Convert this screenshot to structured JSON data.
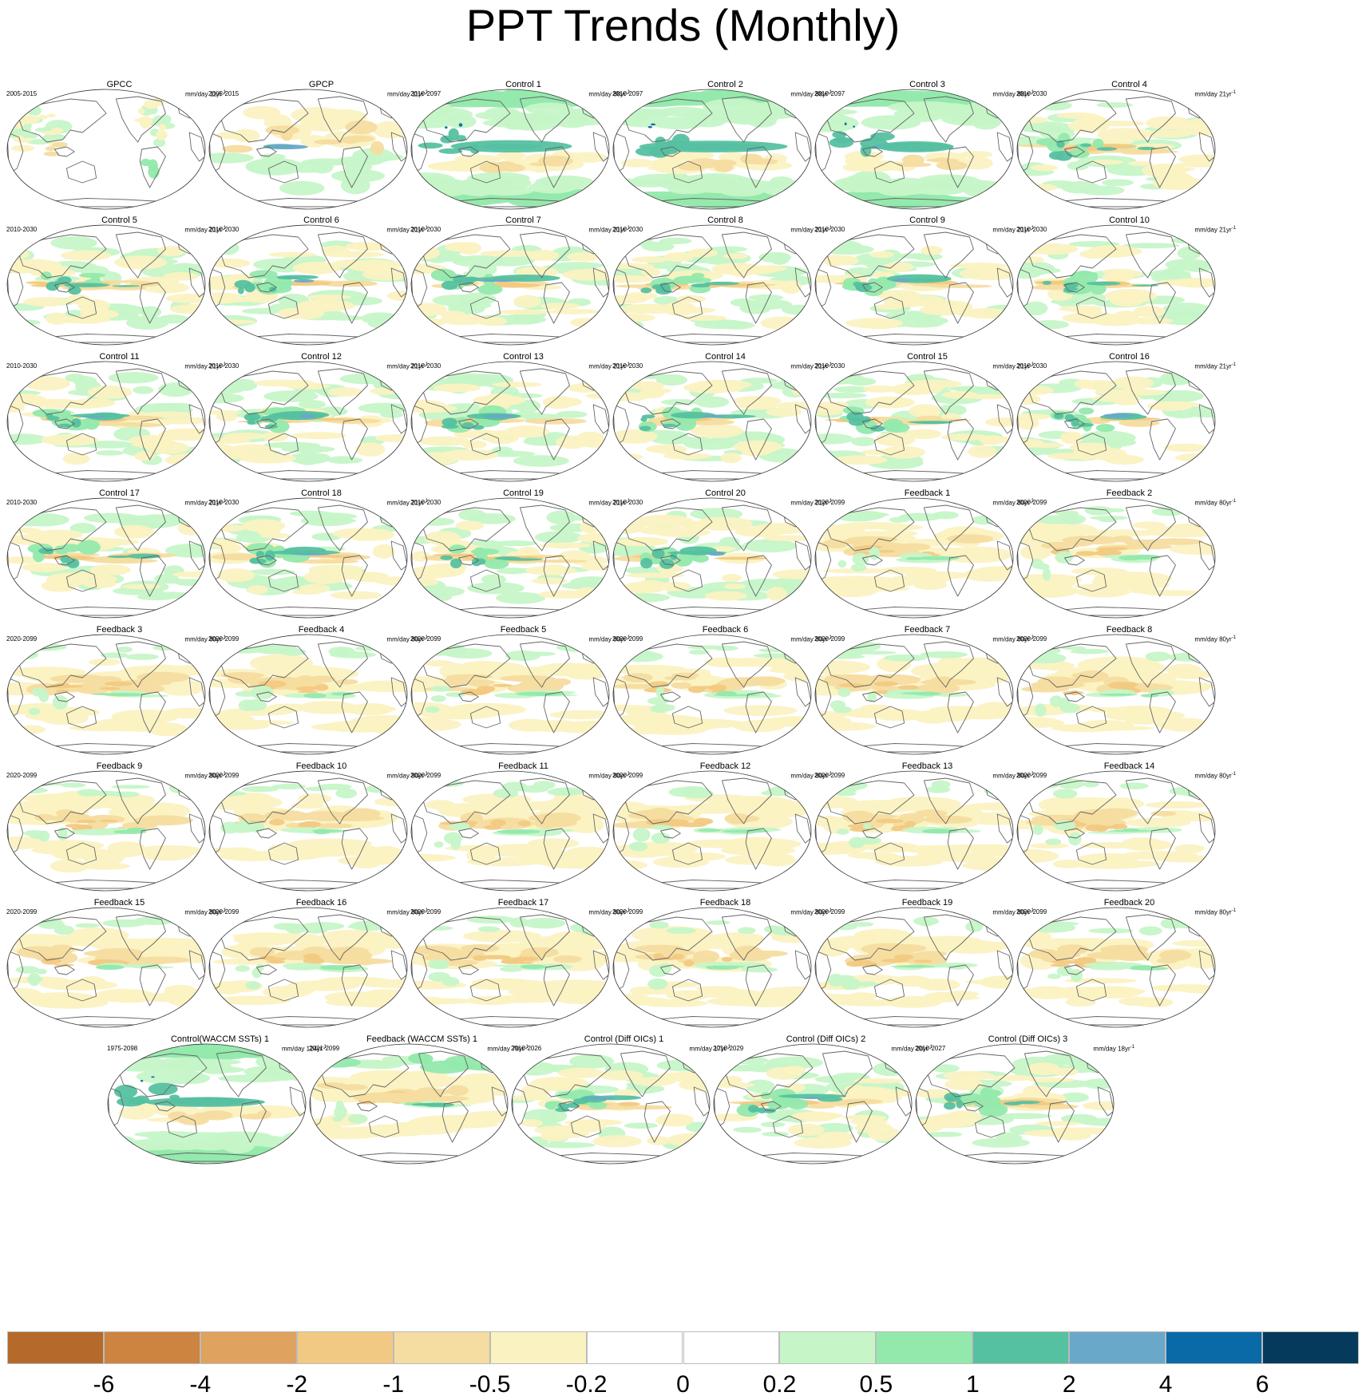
{
  "title": "PPT Trends (Monthly)",
  "chart_data": {
    "type": "heatmap",
    "title": "PPT Trends (Monthly)",
    "projection": "global ellipse (Robinson-like), Pacific-centered",
    "colorbar": {
      "levels": [
        "-6",
        "-4",
        "-2",
        "-1",
        "-0.5",
        "-0.2",
        "0",
        "0.2",
        "0.5",
        "1",
        "2",
        "4",
        "6"
      ],
      "colors": [
        "#b5692a",
        "#cd8440",
        "#dfa25f",
        "#f2c982",
        "#f5dca0",
        "#fbf2c2",
        "#ffffff",
        "#ffffff",
        "#c6f6c8",
        "#93e9ac",
        "#55c1a0",
        "#6aa8c9",
        "#0a6aa8",
        "#053a5c"
      ]
    },
    "panels": [
      {
        "title": "GPCC",
        "period": "2005-2015",
        "unit": "mm/day 11yr",
        "pattern": "obs"
      },
      {
        "title": "GPCP",
        "period": "2005-2015",
        "unit": "mm/day 11yr",
        "pattern": "gpcp"
      },
      {
        "title": "Control 1",
        "period": "2010-2097",
        "unit": "mm/day 88yr",
        "pattern": "longwet"
      },
      {
        "title": "Control 2",
        "period": "2010-2097",
        "unit": "mm/day 88yr",
        "pattern": "longwet"
      },
      {
        "title": "Control 3",
        "period": "2010-2097",
        "unit": "mm/day 88yr",
        "pattern": "longwet"
      },
      {
        "title": "Control 4",
        "period": "2010-2030",
        "unit": "mm/day 21yr",
        "pattern": "mixdry"
      },
      {
        "title": "Control 5",
        "period": "2010-2030",
        "unit": "mm/day 21yr",
        "pattern": "mixdry"
      },
      {
        "title": "Control 6",
        "period": "2010-2030",
        "unit": "mm/day 21yr",
        "pattern": "mixwet"
      },
      {
        "title": "Control 7",
        "period": "2010-2030",
        "unit": "mm/day 21yr",
        "pattern": "mixwet"
      },
      {
        "title": "Control 8",
        "period": "2010-2030",
        "unit": "mm/day 21yr",
        "pattern": "mixdry"
      },
      {
        "title": "Control 9",
        "period": "2010-2030",
        "unit": "mm/day 21yr",
        "pattern": "mixwet"
      },
      {
        "title": "Control 10",
        "period": "2010-2030",
        "unit": "mm/day 21yr",
        "pattern": "mixdry"
      },
      {
        "title": "Control 11",
        "period": "2010-2030",
        "unit": "mm/day 21yr",
        "pattern": "mixwet"
      },
      {
        "title": "Control 12",
        "period": "2010-2030",
        "unit": "mm/day 21yr",
        "pattern": "mixwet"
      },
      {
        "title": "Control 13",
        "period": "2010-2030",
        "unit": "mm/day 21yr",
        "pattern": "mixwet"
      },
      {
        "title": "Control 14",
        "period": "2010-2030",
        "unit": "mm/day 21yr",
        "pattern": "mixwet"
      },
      {
        "title": "Control 15",
        "period": "2010-2030",
        "unit": "mm/day 21yr",
        "pattern": "mixdry"
      },
      {
        "title": "Control 16",
        "period": "2010-2030",
        "unit": "mm/day 21yr",
        "pattern": "mixwet"
      },
      {
        "title": "Control 17",
        "period": "2010-2030",
        "unit": "mm/day 21yr",
        "pattern": "mixdry"
      },
      {
        "title": "Control 18",
        "period": "2010-2030",
        "unit": "mm/day 21yr",
        "pattern": "mixwet"
      },
      {
        "title": "Control 19",
        "period": "2010-2030",
        "unit": "mm/day 21yr",
        "pattern": "mixdry"
      },
      {
        "title": "Control 20",
        "period": "2010-2030",
        "unit": "mm/day 21yr",
        "pattern": "mixwet"
      },
      {
        "title": "Feedback 1",
        "period": "2020-2099",
        "unit": "mm/day 80yr",
        "pattern": "feedback"
      },
      {
        "title": "Feedback 2",
        "period": "2020-2099",
        "unit": "mm/day 80yr",
        "pattern": "feedback"
      },
      {
        "title": "Feedback 3",
        "period": "2020-2099",
        "unit": "mm/day 80yr",
        "pattern": "feedback"
      },
      {
        "title": "Feedback 4",
        "period": "2020-2099",
        "unit": "mm/day 80yr",
        "pattern": "feedback"
      },
      {
        "title": "Feedback 5",
        "period": "2020-2099",
        "unit": "mm/day 80yr",
        "pattern": "feedback"
      },
      {
        "title": "Feedback 6",
        "period": "2020-2099",
        "unit": "mm/day 80yr",
        "pattern": "feedback"
      },
      {
        "title": "Feedback 7",
        "period": "2020-2099",
        "unit": "mm/day 80yr",
        "pattern": "feedback"
      },
      {
        "title": "Feedback 8",
        "period": "2020-2099",
        "unit": "mm/day 80yr",
        "pattern": "feedback"
      },
      {
        "title": "Feedback 9",
        "period": "2020-2099",
        "unit": "mm/day 80yr",
        "pattern": "feedback"
      },
      {
        "title": "Feedback 10",
        "period": "2020-2099",
        "unit": "mm/day 80yr",
        "pattern": "feedback"
      },
      {
        "title": "Feedback 11",
        "period": "2020-2099",
        "unit": "mm/day 80yr",
        "pattern": "feedback"
      },
      {
        "title": "Feedback 12",
        "period": "2020-2099",
        "unit": "mm/day 80yr",
        "pattern": "feedback"
      },
      {
        "title": "Feedback 13",
        "period": "2020-2099",
        "unit": "mm/day 80yr",
        "pattern": "feedback"
      },
      {
        "title": "Feedback 14",
        "period": "2020-2099",
        "unit": "mm/day 80yr",
        "pattern": "feedback"
      },
      {
        "title": "Feedback 15",
        "period": "2020-2099",
        "unit": "mm/day 80yr",
        "pattern": "feedback"
      },
      {
        "title": "Feedback 16",
        "period": "2020-2099",
        "unit": "mm/day 80yr",
        "pattern": "feedback"
      },
      {
        "title": "Feedback 17",
        "period": "2020-2099",
        "unit": "mm/day 80yr",
        "pattern": "feedback"
      },
      {
        "title": "Feedback 18",
        "period": "2020-2099",
        "unit": "mm/day 80yr",
        "pattern": "feedback"
      },
      {
        "title": "Feedback 19",
        "period": "2020-2099",
        "unit": "mm/day 80yr",
        "pattern": "feedback"
      },
      {
        "title": "Feedback 20",
        "period": "2020-2099",
        "unit": "mm/day 80yr",
        "pattern": "feedback"
      },
      {
        "title": "Control(WACCM SSTs) 1",
        "period": "1975-2098",
        "unit": "mm/day 124yr",
        "pattern": "longwet"
      },
      {
        "title": "Feedback (WACCM SSTs) 1",
        "period": "2021-2099",
        "unit": "mm/day 79yr",
        "pattern": "feedbackwet"
      },
      {
        "title": "Control (Diff OICs) 1",
        "period": "2010-2026",
        "unit": "mm/day 17yr",
        "pattern": "mixwet"
      },
      {
        "title": "Control (Diff OICs) 2",
        "period": "2010-2029",
        "unit": "mm/day 20yr",
        "pattern": "mixwet"
      },
      {
        "title": "Control (Diff OICs) 3",
        "period": "2010-2027",
        "unit": "mm/day 18yr",
        "pattern": "mixdry"
      }
    ]
  }
}
